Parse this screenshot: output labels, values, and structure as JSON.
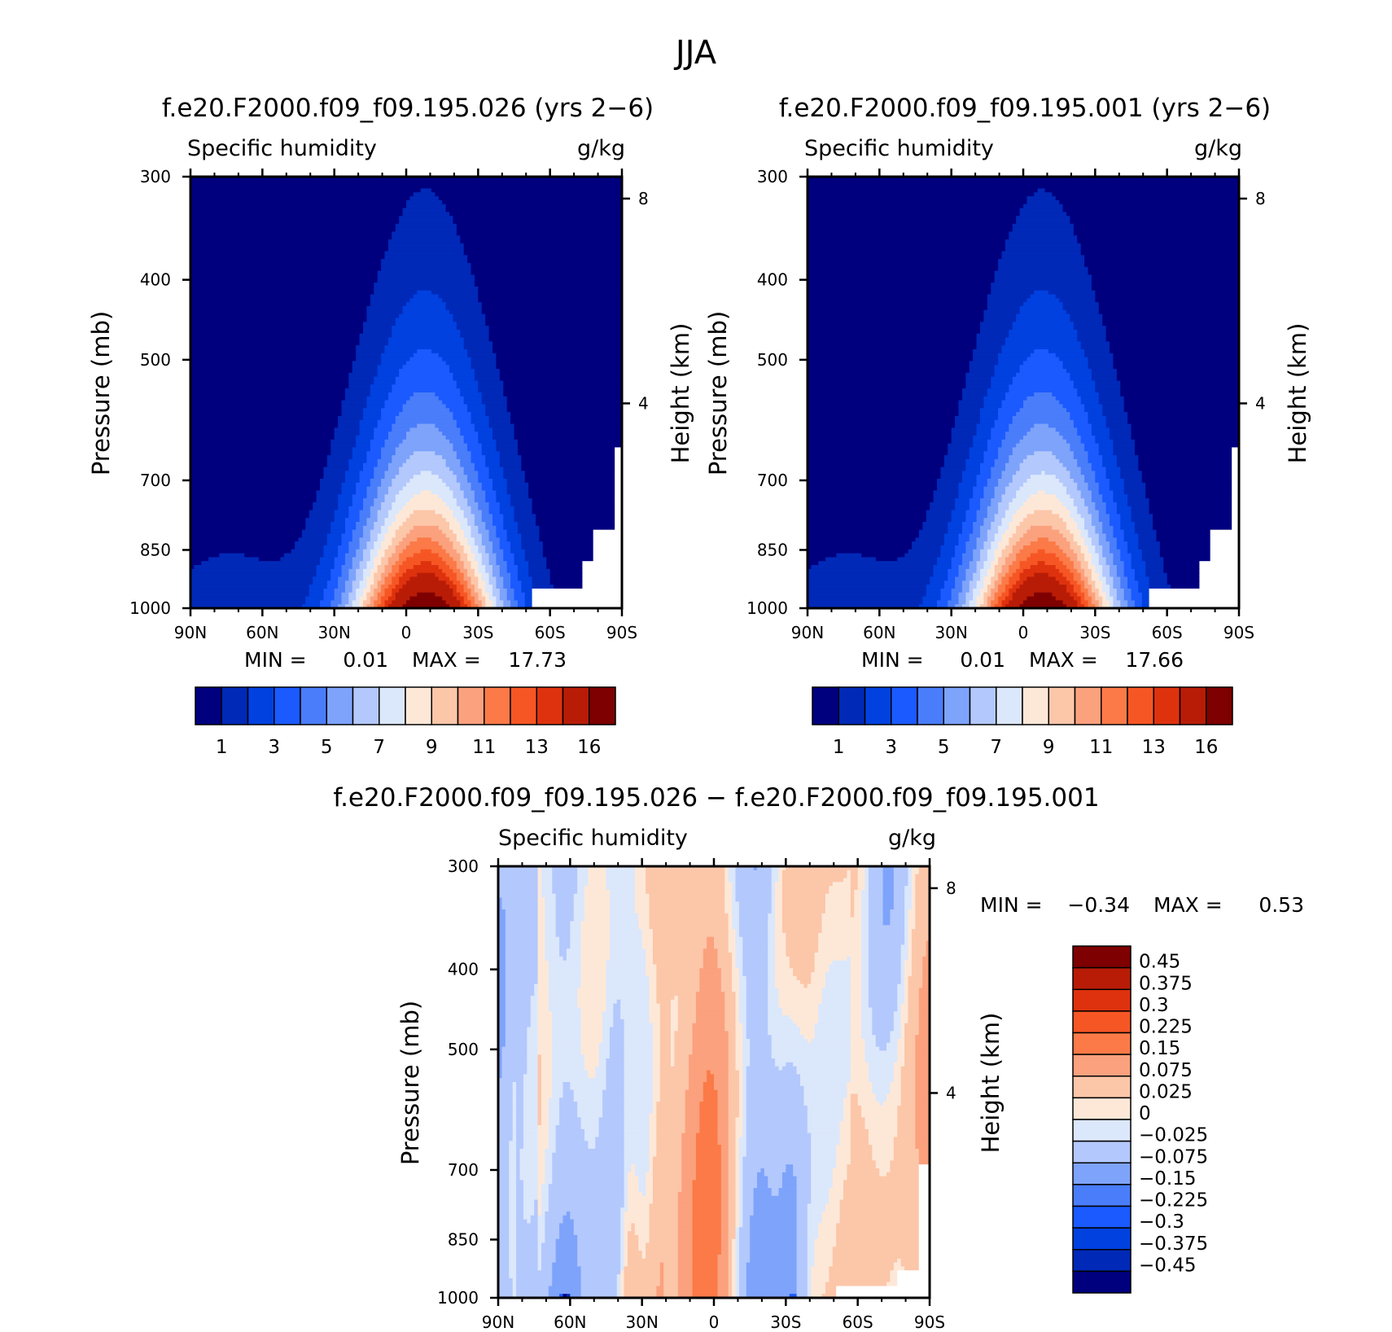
{
  "figure": {
    "title": "JJA"
  },
  "chart_data": [
    {
      "type": "heatmap",
      "title": "f.e20.F2000.f09_f09.195.026 (yrs 2−6)",
      "left_string": "Specific humidity",
      "right_string": "g/kg",
      "ylabel": "Pressure (mb)",
      "ylabel_right": "Height (km)",
      "x_ticks": [
        "90N",
        "60N",
        "30N",
        "0",
        "30S",
        "60S",
        "90S"
      ],
      "y_ticks": [
        "300",
        "400",
        "500",
        "700",
        "850",
        "1000"
      ],
      "y_ticks_right": [
        "8",
        "4"
      ],
      "xlim": [
        90,
        -90
      ],
      "ylim": [
        1000,
        300
      ],
      "y_scale": "log",
      "stats": {
        "min_label": "MIN =",
        "min": "0.01",
        "max_label": "MAX =",
        "max": "17.73"
      },
      "colorbar": {
        "orientation": "horizontal",
        "labels": [
          "1",
          "3",
          "5",
          "7",
          "9",
          "11",
          "13",
          "16"
        ],
        "colors": [
          "#00007f",
          "#0029b8",
          "#0041e0",
          "#1a5aff",
          "#4a7dfa",
          "#7ea3fb",
          "#b3c8fc",
          "#dbe7fb",
          "#fde8d8",
          "#fcc6a9",
          "#fba17d",
          "#fb7a48",
          "#f65624",
          "#de320e",
          "#b81c07",
          "#7e0000"
        ]
      },
      "peak_lat": -8,
      "moisture_scale": 1.0,
      "topo": "A"
    },
    {
      "type": "heatmap",
      "title": "f.e20.F2000.f09_f09.195.001 (yrs 2−6)",
      "left_string": "Specific humidity",
      "right_string": "g/kg",
      "ylabel": "Pressure (mb)",
      "ylabel_right": "Height (km)",
      "x_ticks": [
        "90N",
        "60N",
        "30N",
        "0",
        "30S",
        "60S",
        "90S"
      ],
      "y_ticks": [
        "300",
        "400",
        "500",
        "700",
        "850",
        "1000"
      ],
      "y_ticks_right": [
        "8",
        "4"
      ],
      "xlim": [
        90,
        -90
      ],
      "ylim": [
        1000,
        300
      ],
      "y_scale": "log",
      "stats": {
        "min_label": "MIN =",
        "min": "0.01",
        "max_label": "MAX =",
        "max": "17.66"
      },
      "colorbar": {
        "orientation": "horizontal",
        "labels": [
          "1",
          "3",
          "5",
          "7",
          "9",
          "11",
          "13",
          "16"
        ],
        "colors": [
          "#00007f",
          "#0029b8",
          "#0041e0",
          "#1a5aff",
          "#4a7dfa",
          "#7ea3fb",
          "#b3c8fc",
          "#dbe7fb",
          "#fde8d8",
          "#fcc6a9",
          "#fba17d",
          "#fb7a48",
          "#f65624",
          "#de320e",
          "#b81c07",
          "#7e0000"
        ]
      },
      "peak_lat": -8,
      "moisture_scale": 0.996,
      "topo": "A"
    },
    {
      "type": "heatmap",
      "title": "f.e20.F2000.f09_f09.195.026 − f.e20.F2000.f09_f09.195.001",
      "left_string": "Specific humidity",
      "right_string": "g/kg",
      "ylabel": "Pressure (mb)",
      "ylabel_right": "Height (km)",
      "x_ticks": [
        "90N",
        "60N",
        "30N",
        "0",
        "30S",
        "60S",
        "90S"
      ],
      "y_ticks": [
        "300",
        "400",
        "500",
        "700",
        "850",
        "1000"
      ],
      "y_ticks_right": [
        "8",
        "4"
      ],
      "xlim": [
        90,
        -90
      ],
      "ylim": [
        1000,
        300
      ],
      "y_scale": "log",
      "stats": {
        "min_label": "MIN =",
        "min": "−0.34",
        "max_label": "MAX =",
        "max": "0.53"
      },
      "colorbar": {
        "orientation": "vertical",
        "labels": [
          "0.45",
          "0.375",
          "0.3",
          "0.225",
          "0.15",
          "0.075",
          "0.025",
          "0",
          "−0.025",
          "−0.075",
          "−0.15",
          "−0.225",
          "−0.3",
          "−0.375",
          "−0.45"
        ],
        "colors": [
          "#7e0000",
          "#b81c07",
          "#de320e",
          "#f65624",
          "#fb7a48",
          "#fba17d",
          "#fcc6a9",
          "#fde8d8",
          "#dbe7fb",
          "#b3c8fc",
          "#7ea3fb",
          "#4a7dfa",
          "#1a5aff",
          "#0041e0",
          "#0029b8",
          "#00007f"
        ]
      },
      "topo": "B"
    }
  ]
}
